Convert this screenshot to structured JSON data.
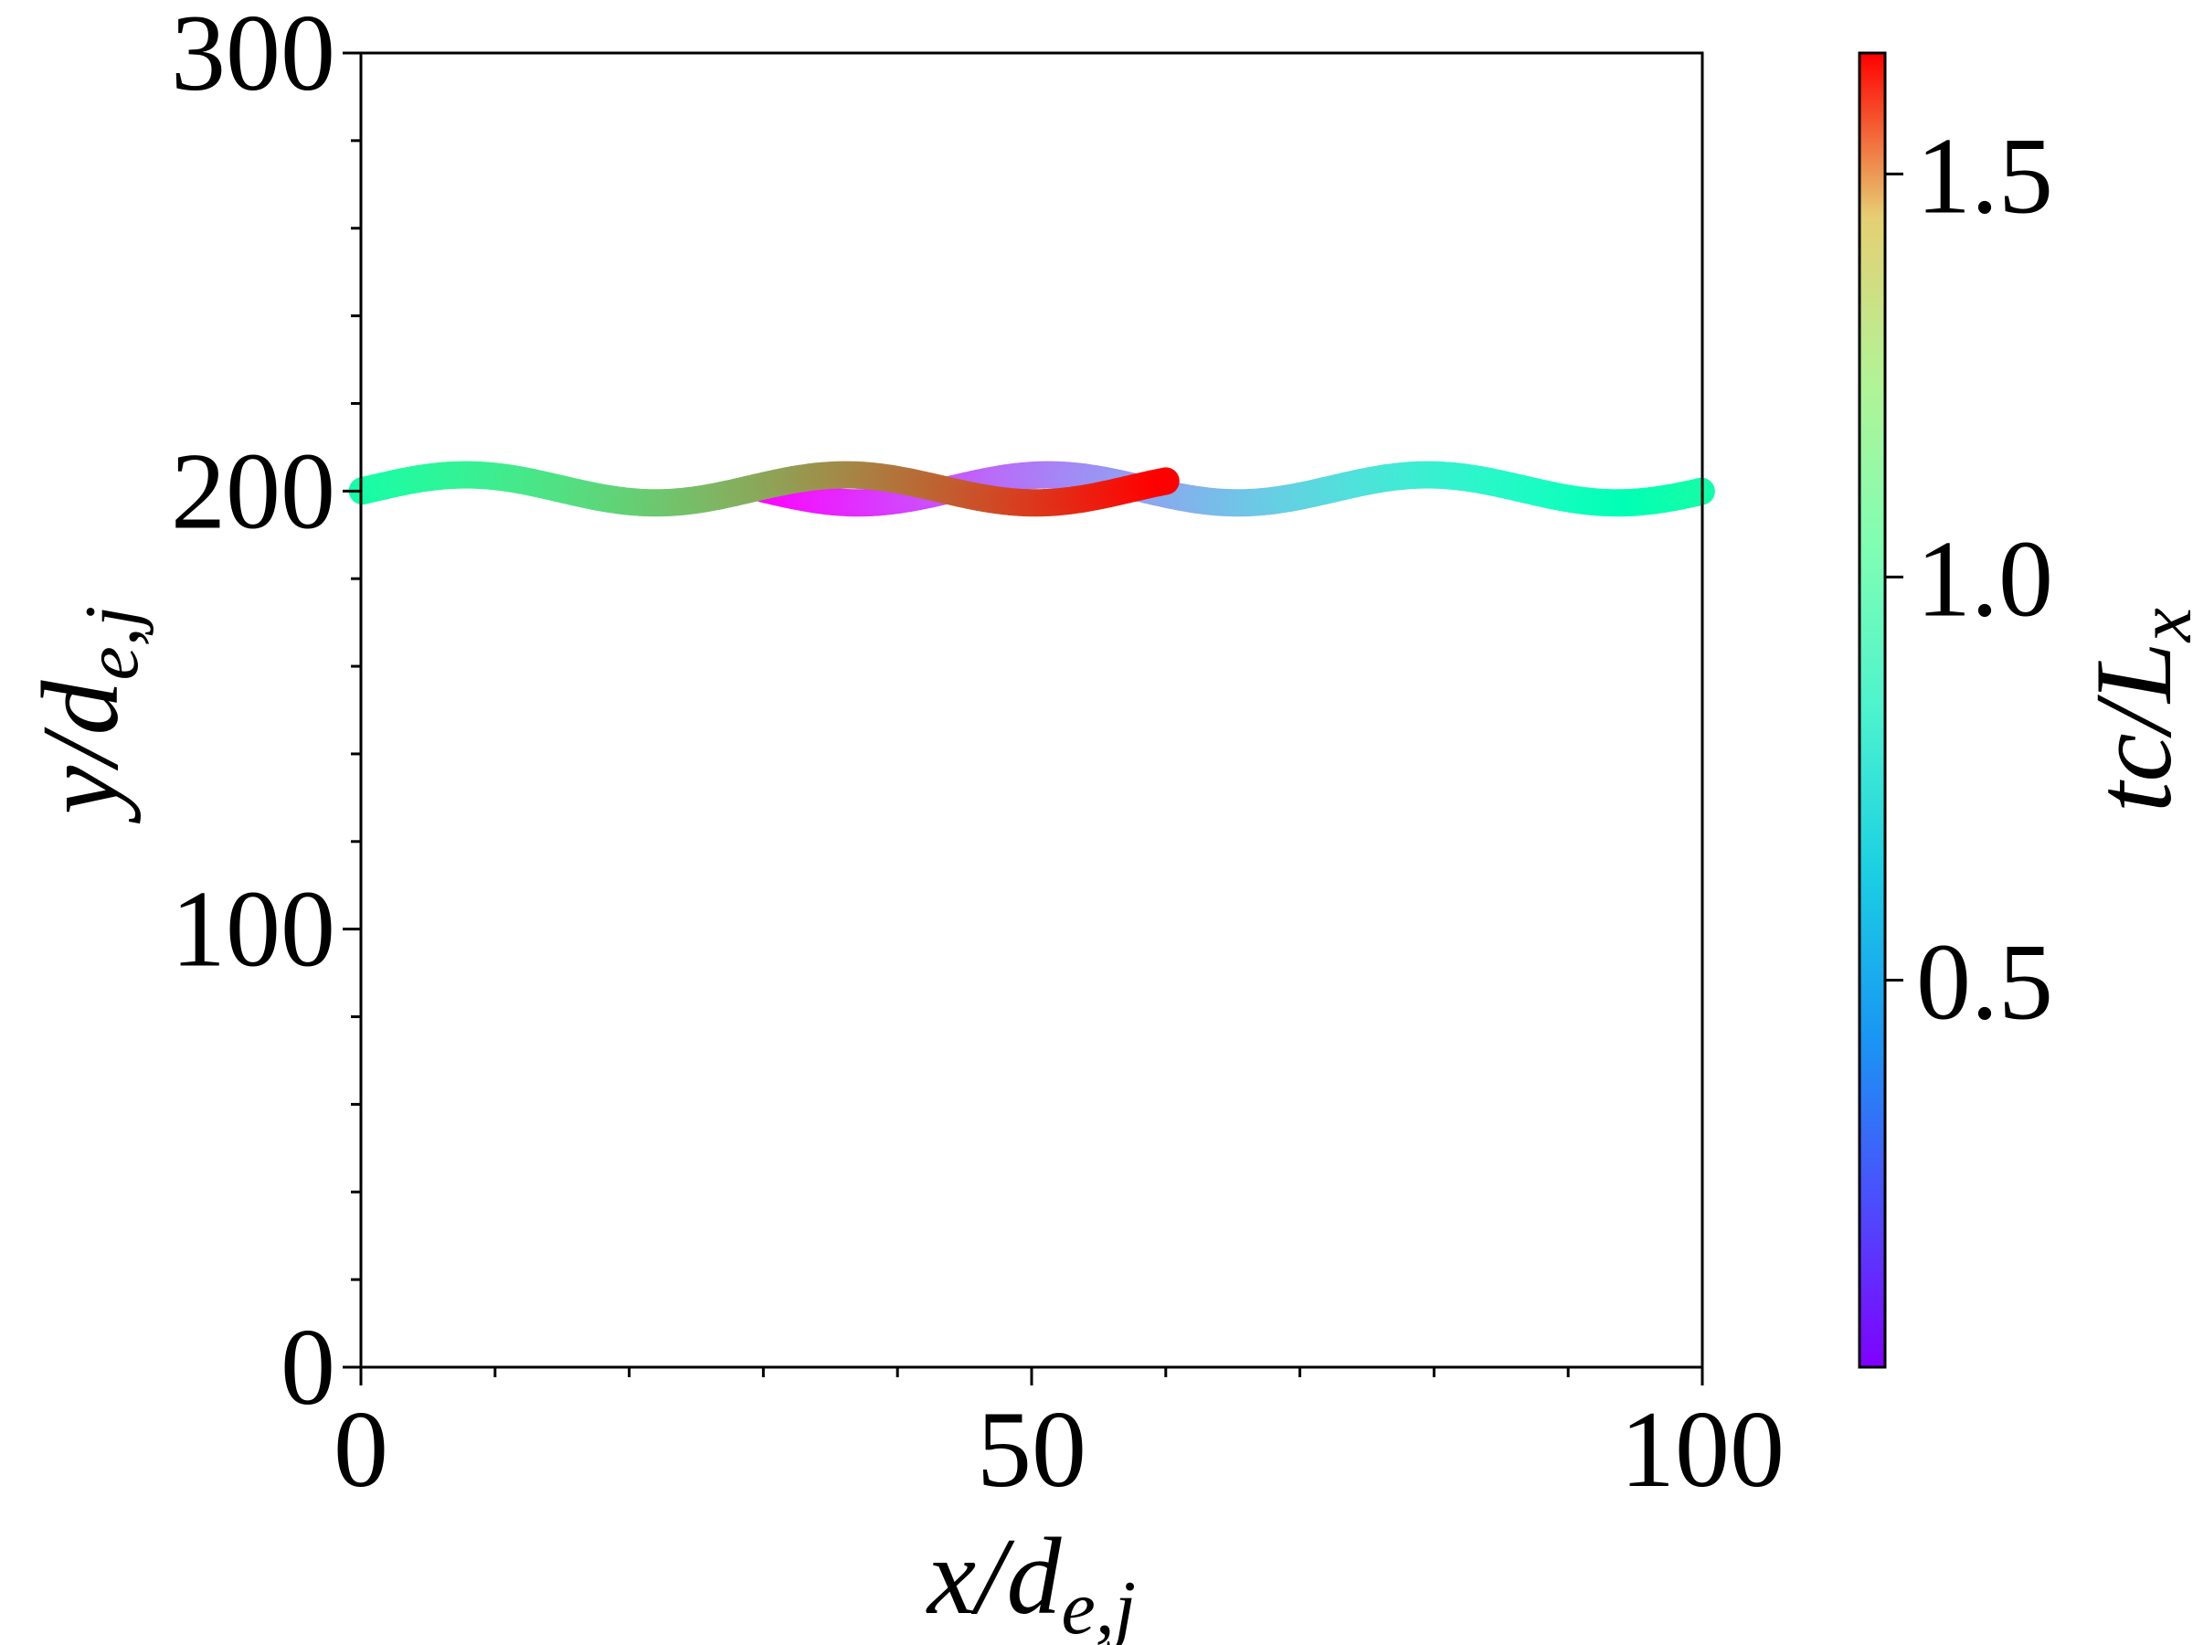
{
  "chart_data": {
    "type": "scatter",
    "title": "",
    "xlabel": {
      "base": "x/d",
      "sub": "e,j"
    },
    "ylabel": {
      "base": "y/d",
      "sub": "e,j"
    },
    "colorbar_label": {
      "base": "tc/L",
      "sub": "x"
    },
    "xlim": [
      0,
      100
    ],
    "ylim": [
      0,
      300
    ],
    "x_ticks": [
      0,
      50,
      100
    ],
    "x_tick_labels": [
      "0",
      "50",
      "100"
    ],
    "y_ticks": [
      0,
      100,
      200,
      300
    ],
    "y_tick_labels": [
      "0",
      "100",
      "200",
      "300"
    ],
    "colorbar_range": [
      0.02,
      1.65
    ],
    "colorbar_ticks": [
      0.5,
      1.0,
      1.5
    ],
    "colorbar_tick_labels": [
      "0.5",
      "1.0",
      "1.5"
    ],
    "colormap": "rainbow",
    "grid": false,
    "trajectory": {
      "description_model": "particle oscillating in y about 200 while drifting in +x with periodic wrap",
      "y_center": 200.5,
      "y_amplitude": 3.2,
      "x_period": 28.3,
      "x_start": 30,
      "x_end": 60,
      "x_domain": 100,
      "t_start": 0.02,
      "t_end": 1.65,
      "y_phase_x0": 30
    }
  }
}
